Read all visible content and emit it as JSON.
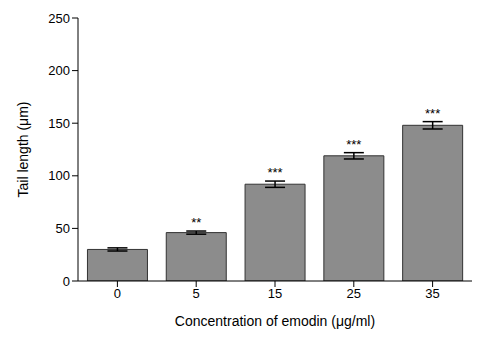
{
  "chart_data": {
    "type": "bar",
    "categories": [
      "0",
      "5",
      "15",
      "25",
      "35"
    ],
    "values": [
      30,
      46,
      92,
      119,
      148
    ],
    "errors": [
      1.5,
      1.5,
      3,
      3,
      3.5
    ],
    "color": "#8c8c8c",
    "xlabel": "Concentration of emodin (μg/ml)",
    "ylabel": "Tail length (μm)",
    "ylim": [
      0,
      250
    ],
    "yticks": [
      0,
      50,
      100,
      150,
      200,
      250
    ],
    "grid": false,
    "annotations": [
      {
        "category": "5",
        "text": "**"
      },
      {
        "category": "15",
        "text": "***"
      },
      {
        "category": "25",
        "text": "***"
      },
      {
        "category": "35",
        "text": "***"
      }
    ]
  }
}
